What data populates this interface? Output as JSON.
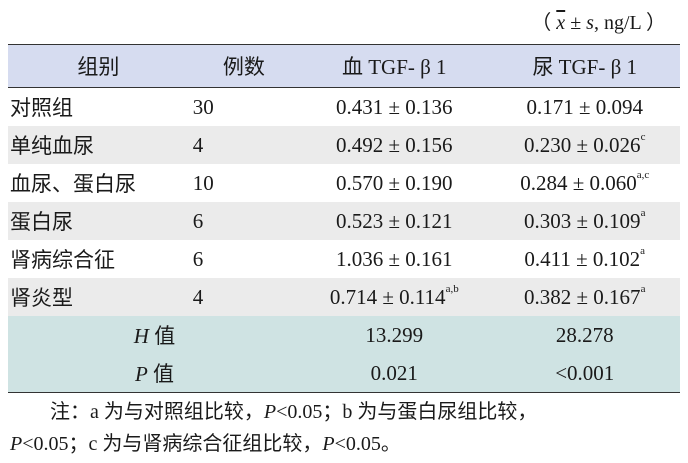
{
  "unit": {
    "xbar": "x",
    "rest": " ± ",
    "s": "s",
    "tail": ", ng/L ）",
    "lead": "（ "
  },
  "headers": [
    "组别",
    "例数",
    "血 TGF- β 1",
    "尿 TGF- β 1"
  ],
  "rows": [
    {
      "group": "对照组",
      "n": "30",
      "blood": "0.431 ± 0.136",
      "blood_sup": "",
      "urine": "0.171 ± 0.094",
      "urine_sup": ""
    },
    {
      "group": "单纯血尿",
      "n": "4",
      "blood": "0.492 ± 0.156",
      "blood_sup": "",
      "urine": "0.230 ± 0.026",
      "urine_sup": "c"
    },
    {
      "group": "血尿、蛋白尿",
      "n": "10",
      "blood": "0.570 ± 0.190",
      "blood_sup": "",
      "urine": "0.284 ± 0.060",
      "urine_sup": "a,c"
    },
    {
      "group": "蛋白尿",
      "n": "6",
      "blood": "0.523 ± 0.121",
      "blood_sup": "",
      "urine": "0.303 ± 0.109",
      "urine_sup": "a"
    },
    {
      "group": "肾病综合征",
      "n": "6",
      "blood": "1.036 ± 0.161",
      "blood_sup": "",
      "urine": "0.411 ± 0.102",
      "urine_sup": "a"
    },
    {
      "group": "肾炎型",
      "n": "4",
      "blood": "0.714 ± 0.114",
      "blood_sup": "a,b",
      "urine": "0.382 ± 0.167",
      "urine_sup": "a"
    }
  ],
  "stats": [
    {
      "var": "H",
      "label": " 值",
      "blood": "13.299",
      "urine": "28.278"
    },
    {
      "var": "P",
      "label": " 值",
      "blood": "0.021",
      "urine": "<0.001"
    }
  ],
  "note": {
    "line1_a": "注：a 为与对照组比较，",
    "line1_p": "P",
    "line1_b": "<0.05；b 为与蛋白尿组比较，",
    "line2_p1": "P",
    "line2_a": "<0.05；c 为与肾病综合征组比较，",
    "line2_p2": "P",
    "line2_b": "<0.05。"
  }
}
